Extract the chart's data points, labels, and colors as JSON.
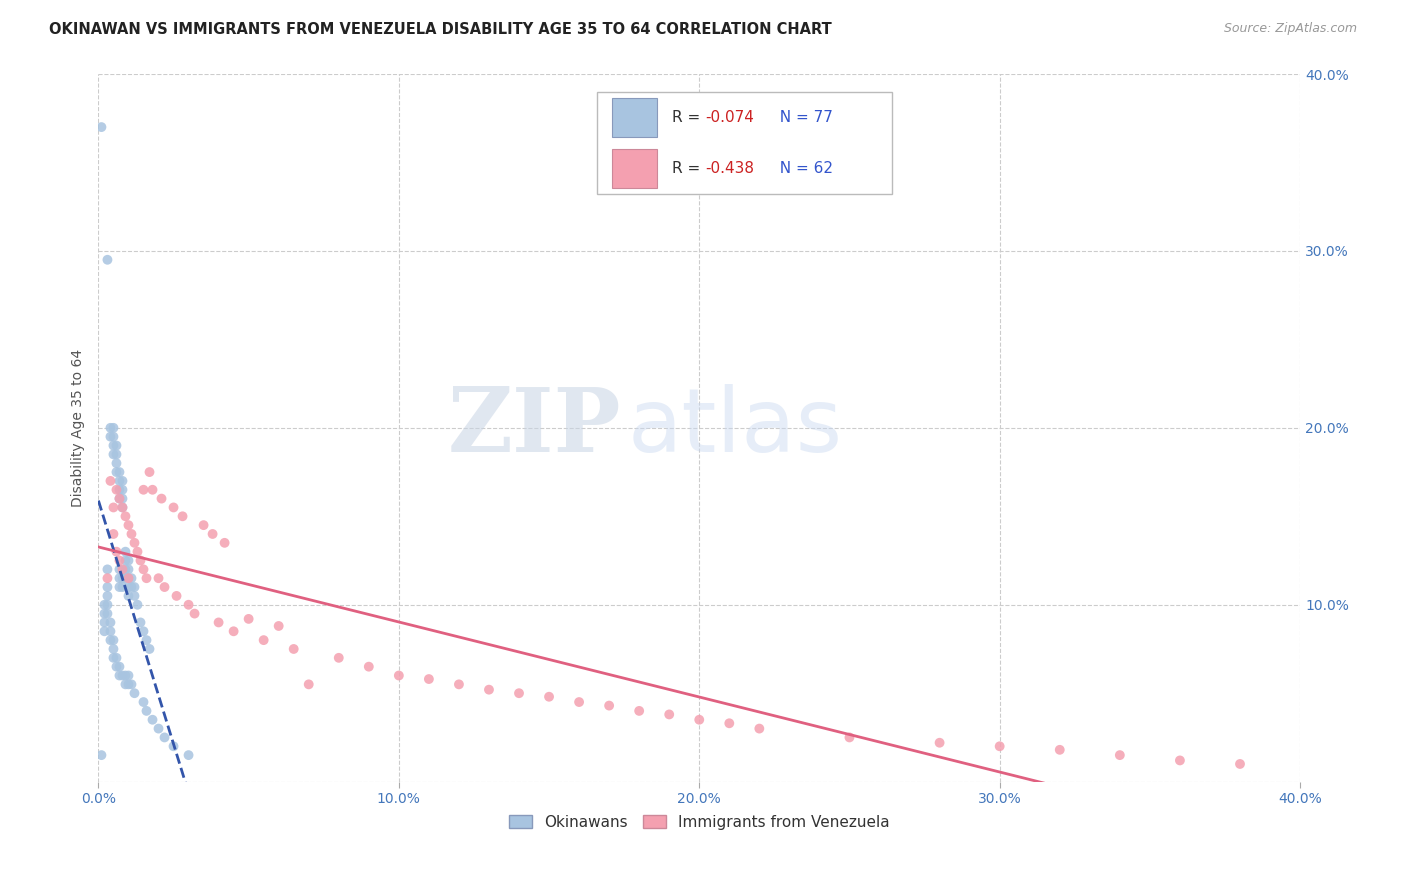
{
  "title": "OKINAWAN VS IMMIGRANTS FROM VENEZUELA DISABILITY AGE 35 TO 64 CORRELATION CHART",
  "source": "Source: ZipAtlas.com",
  "ylabel": "Disability Age 35 to 64",
  "xlim": [
    0.0,
    0.4
  ],
  "ylim": [
    0.0,
    0.4
  ],
  "xtick_vals": [
    0.0,
    0.1,
    0.2,
    0.3,
    0.4
  ],
  "xtick_labels": [
    "0.0%",
    "10.0%",
    "20.0%",
    "30.0%",
    "40.0%"
  ],
  "ytick_vals": [
    0.0,
    0.1,
    0.2,
    0.3,
    0.4
  ],
  "ytick_labels_right": [
    "",
    "10.0%",
    "20.0%",
    "30.0%",
    "40.0%"
  ],
  "series1_label": "Okinawans",
  "series2_label": "Immigrants from Venezuela",
  "series1_R": -0.074,
  "series1_N": 77,
  "series2_R": -0.438,
  "series2_N": 62,
  "series1_color": "#a8c4e0",
  "series2_color": "#f4a0b0",
  "series1_line_color": "#3355aa",
  "series2_line_color": "#e06080",
  "background_color": "#ffffff",
  "grid_color": "#cccccc",
  "legend_R1": "-0.074",
  "legend_R2": "-0.438",
  "legend_N1": "77",
  "legend_N2": "62",
  "series1_x": [
    0.001,
    0.001,
    0.002,
    0.002,
    0.002,
    0.002,
    0.003,
    0.003,
    0.003,
    0.003,
    0.003,
    0.003,
    0.004,
    0.004,
    0.004,
    0.004,
    0.004,
    0.005,
    0.005,
    0.005,
    0.005,
    0.005,
    0.005,
    0.005,
    0.006,
    0.006,
    0.006,
    0.006,
    0.006,
    0.006,
    0.007,
    0.007,
    0.007,
    0.007,
    0.007,
    0.007,
    0.007,
    0.007,
    0.007,
    0.008,
    0.008,
    0.008,
    0.008,
    0.008,
    0.008,
    0.008,
    0.009,
    0.009,
    0.009,
    0.009,
    0.009,
    0.009,
    0.01,
    0.01,
    0.01,
    0.01,
    0.01,
    0.01,
    0.01,
    0.011,
    0.011,
    0.011,
    0.012,
    0.012,
    0.012,
    0.013,
    0.014,
    0.015,
    0.015,
    0.016,
    0.016,
    0.017,
    0.018,
    0.02,
    0.022,
    0.025,
    0.03
  ],
  "series1_y": [
    0.37,
    0.015,
    0.1,
    0.095,
    0.09,
    0.085,
    0.295,
    0.12,
    0.11,
    0.105,
    0.1,
    0.095,
    0.2,
    0.195,
    0.09,
    0.085,
    0.08,
    0.2,
    0.195,
    0.19,
    0.185,
    0.08,
    0.075,
    0.07,
    0.19,
    0.185,
    0.18,
    0.175,
    0.07,
    0.065,
    0.175,
    0.17,
    0.165,
    0.16,
    0.12,
    0.115,
    0.11,
    0.065,
    0.06,
    0.17,
    0.165,
    0.16,
    0.155,
    0.115,
    0.11,
    0.06,
    0.13,
    0.125,
    0.12,
    0.115,
    0.06,
    0.055,
    0.125,
    0.12,
    0.115,
    0.11,
    0.105,
    0.06,
    0.055,
    0.115,
    0.11,
    0.055,
    0.11,
    0.105,
    0.05,
    0.1,
    0.09,
    0.085,
    0.045,
    0.08,
    0.04,
    0.075,
    0.035,
    0.03,
    0.025,
    0.02,
    0.015
  ],
  "series2_x": [
    0.003,
    0.004,
    0.005,
    0.005,
    0.006,
    0.006,
    0.007,
    0.007,
    0.008,
    0.008,
    0.009,
    0.01,
    0.01,
    0.011,
    0.012,
    0.013,
    0.014,
    0.015,
    0.015,
    0.016,
    0.017,
    0.018,
    0.02,
    0.021,
    0.022,
    0.025,
    0.026,
    0.028,
    0.03,
    0.032,
    0.035,
    0.038,
    0.04,
    0.042,
    0.045,
    0.05,
    0.055,
    0.06,
    0.065,
    0.07,
    0.08,
    0.09,
    0.1,
    0.11,
    0.12,
    0.13,
    0.14,
    0.15,
    0.16,
    0.17,
    0.18,
    0.19,
    0.2,
    0.21,
    0.22,
    0.25,
    0.28,
    0.3,
    0.32,
    0.34,
    0.36,
    0.38
  ],
  "series2_y": [
    0.115,
    0.17,
    0.155,
    0.14,
    0.165,
    0.13,
    0.16,
    0.125,
    0.155,
    0.12,
    0.15,
    0.145,
    0.115,
    0.14,
    0.135,
    0.13,
    0.125,
    0.165,
    0.12,
    0.115,
    0.175,
    0.165,
    0.115,
    0.16,
    0.11,
    0.155,
    0.105,
    0.15,
    0.1,
    0.095,
    0.145,
    0.14,
    0.09,
    0.135,
    0.085,
    0.092,
    0.08,
    0.088,
    0.075,
    0.055,
    0.07,
    0.065,
    0.06,
    0.058,
    0.055,
    0.052,
    0.05,
    0.048,
    0.045,
    0.043,
    0.04,
    0.038,
    0.035,
    0.033,
    0.03,
    0.025,
    0.022,
    0.02,
    0.018,
    0.015,
    0.012,
    0.01
  ]
}
